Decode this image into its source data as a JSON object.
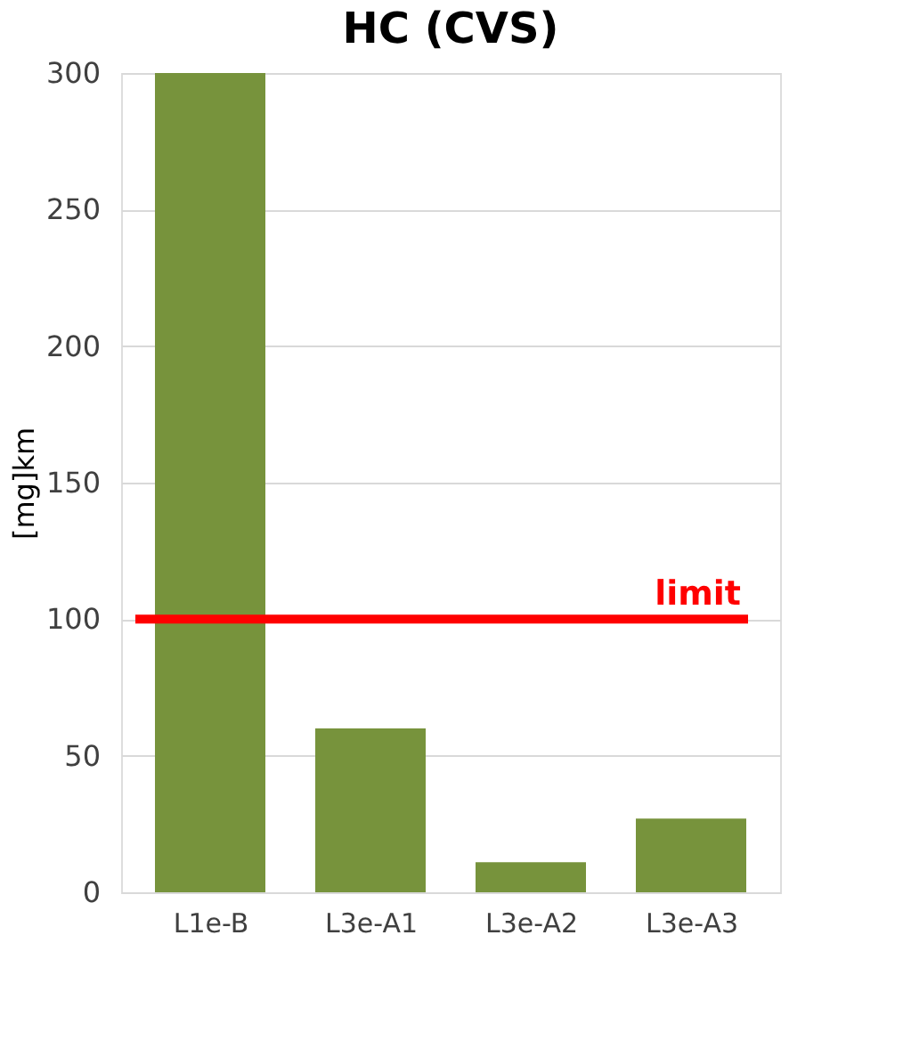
{
  "chart_data": {
    "type": "bar",
    "title": "HC (CVS)",
    "ylabel": "[mg]km",
    "categories": [
      "L1e-B",
      "L3e-A1",
      "L3e-A2",
      "L3e-A3"
    ],
    "values": [
      300,
      60,
      11,
      27
    ],
    "color": "#77933c",
    "ylim": [
      0,
      300
    ],
    "yticks": [
      0,
      50,
      100,
      150,
      200,
      250,
      300
    ],
    "grid": "y",
    "ref_lines": [
      {
        "axis": "y",
        "value": 100,
        "label": "limit",
        "color": "#ff0000"
      }
    ]
  }
}
